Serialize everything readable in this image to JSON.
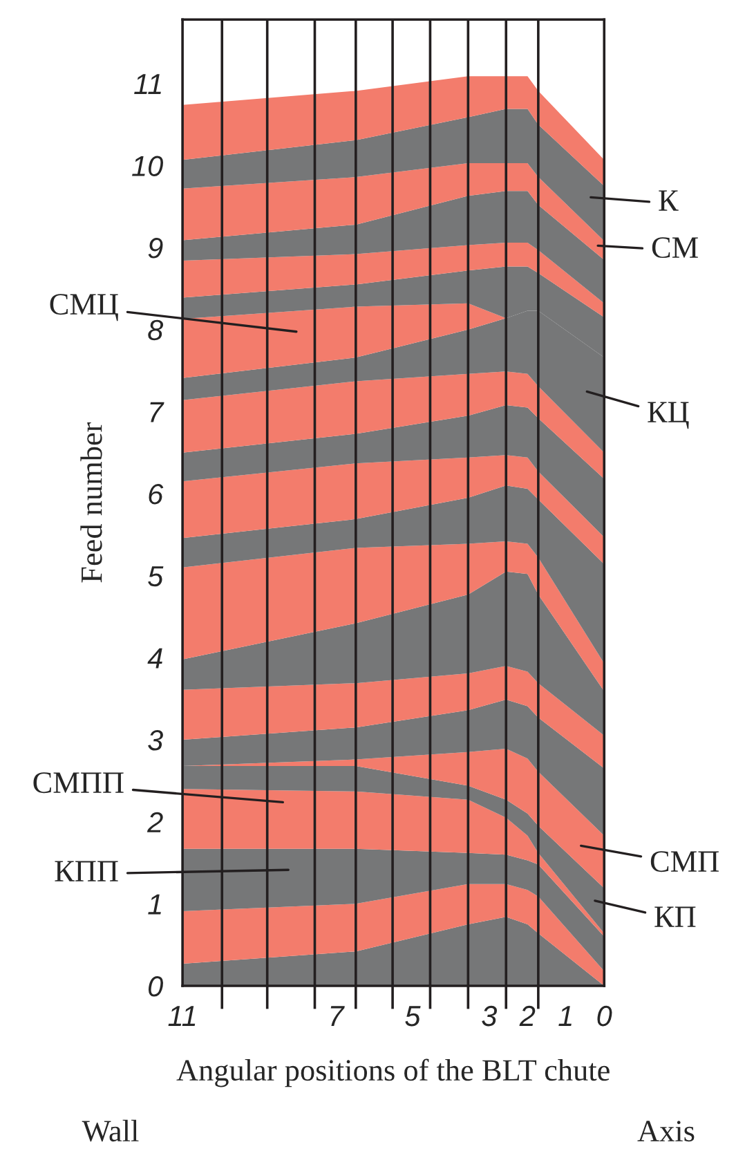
{
  "chart_data": {
    "type": "area",
    "stacked": true,
    "xlabel": "Angular positions of the BLT chute",
    "ylabel": "Feed number",
    "x": [
      11,
      6.48,
      3.55,
      2.56,
      2.0,
      1.72,
      0
    ],
    "xlim": [
      11,
      0
    ],
    "xticks": [
      11,
      7,
      5,
      3,
      2,
      1,
      0,
      {
        "value": 9.97,
        "label": null
      },
      {
        "value": 8.79,
        "label": null
      },
      {
        "value": 7.55,
        "label": null
      },
      {
        "value": 6.48,
        "label": null
      },
      {
        "value": 5.52,
        "label": null
      },
      {
        "value": 4.54,
        "label": null
      },
      {
        "value": 3.55,
        "label": null
      },
      {
        "value": 2.56,
        "label": null
      },
      {
        "value": 1.72,
        "label": null
      }
    ],
    "ylim": [
      0,
      11.78
    ],
    "yticks": [
      0,
      1,
      2,
      3,
      4,
      5,
      6,
      7,
      8,
      9,
      10,
      11
    ],
    "ref_lines": [
      {
        "axis": "x",
        "value": 9.97,
        "color": "#231f20"
      },
      {
        "axis": "x",
        "value": 8.79,
        "color": "#231f20"
      },
      {
        "axis": "x",
        "value": 7.55,
        "color": "#231f20"
      },
      {
        "axis": "x",
        "value": 6.48,
        "color": "#231f20"
      },
      {
        "axis": "x",
        "value": 5.52,
        "color": "#231f20"
      },
      {
        "axis": "x",
        "value": 4.54,
        "color": "#231f20"
      },
      {
        "axis": "x",
        "value": 3.55,
        "color": "#231f20"
      },
      {
        "axis": "x",
        "value": 2.56,
        "color": "#231f20"
      },
      {
        "axis": "x",
        "value": 1.72,
        "color": "#231f20"
      }
    ],
    "series": [
      {
        "color": "#767778",
        "values": [
          0.27,
          0.42,
          0.75,
          0.84,
          0.75,
          0.64,
          0
        ]
      },
      {
        "color": "#f37c6c",
        "values": [
          0.64,
          0.58,
          0.49,
          0.4,
          0.42,
          0.45,
          0.18
        ]
      },
      {
        "color": "#767778",
        "values": [
          0.76,
          0.67,
          0.38,
          0.36,
          0.36,
          0.39,
          0.42
        ]
      },
      {
        "color": "#f37c6c",
        "values": [
          0.73,
          0.7,
          0.65,
          0.45,
          0.3,
          0.14,
          0.04
        ]
      },
      {
        "color": "#767778",
        "values": [
          0.28,
          0.31,
          0.17,
          0.22,
          0.27,
          0.33,
          0.55
        ]
      },
      {
        "color": "#f37c6c",
        "values": [
          0,
          0.08,
          0.41,
          0.62,
          0.67,
          0.66,
          0.64
        ]
      },
      {
        "color": "#767778",
        "values": [
          0.32,
          0.39,
          0.51,
          0.6,
          0.64,
          0.66,
          0.82
        ]
      },
      {
        "color": "#f37c6c",
        "values": [
          0.61,
          0.54,
          0.45,
          0.41,
          0.42,
          0.42,
          0.4
        ]
      },
      {
        "color": "#767778",
        "values": [
          0.37,
          0.73,
          0.96,
          1.15,
          1.19,
          1.08,
          0.54
        ]
      },
      {
        "color": "#f37c6c",
        "values": [
          1.12,
          0.92,
          0.62,
          0.37,
          0.37,
          0.45,
          0.34
        ]
      },
      {
        "color": "#767778",
        "values": [
          0.36,
          0.35,
          0.56,
          0.68,
          0.67,
          0.71,
          1.21
        ]
      },
      {
        "color": "#f37c6c",
        "values": [
          0.69,
          0.68,
          0.49,
          0.37,
          0.38,
          0.34,
          0.33
        ]
      },
      {
        "color": "#767778",
        "values": [
          0.35,
          0.36,
          0.51,
          0.61,
          0.61,
          0.65,
          0.71
        ]
      },
      {
        "color": "#f37c6c",
        "values": [
          0.64,
          0.64,
          0.51,
          0.41,
          0.41,
          0.39,
          0.32
        ]
      },
      {
        "color": "#767778",
        "values": [
          0.27,
          0.29,
          0.54,
          0.65,
          0.77,
          0.92,
          1.16
        ]
      },
      {
        "color": "#f37c6c",
        "values": [
          0.72,
          0.62,
          0.32,
          0,
          0,
          0,
          0
        ]
      },
      {
        "color": "#767778",
        "values": [
          0.26,
          0.27,
          0.4,
          0.63,
          0.54,
          0.46,
          0.49
        ]
      },
      {
        "color": "#f37c6c",
        "values": [
          0.45,
          0.37,
          0.31,
          0.29,
          0.29,
          0.28,
          0.17
        ]
      },
      {
        "color": "#767778",
        "values": [
          0.25,
          0.36,
          0.6,
          0.63,
          0.63,
          0.55,
          0.53
        ]
      },
      {
        "color": "#f37c6c",
        "values": [
          0.63,
          0.58,
          0.4,
          0.34,
          0.34,
          0.34,
          0.23
        ]
      },
      {
        "color": "#767778",
        "values": [
          0.35,
          0.45,
          0.56,
          0.66,
          0.66,
          0.64,
          0.67
        ]
      },
      {
        "color": "#f37c6c",
        "values": [
          0.67,
          0.6,
          0.5,
          0.4,
          0.4,
          0.41,
          0.32
        ]
      }
    ],
    "annotations": [
      "К",
      "СМ",
      "КЦ",
      "СМП",
      "КП",
      "СМЦ",
      "СМПП",
      "КПП",
      "Wall",
      "Axis"
    ]
  }
}
